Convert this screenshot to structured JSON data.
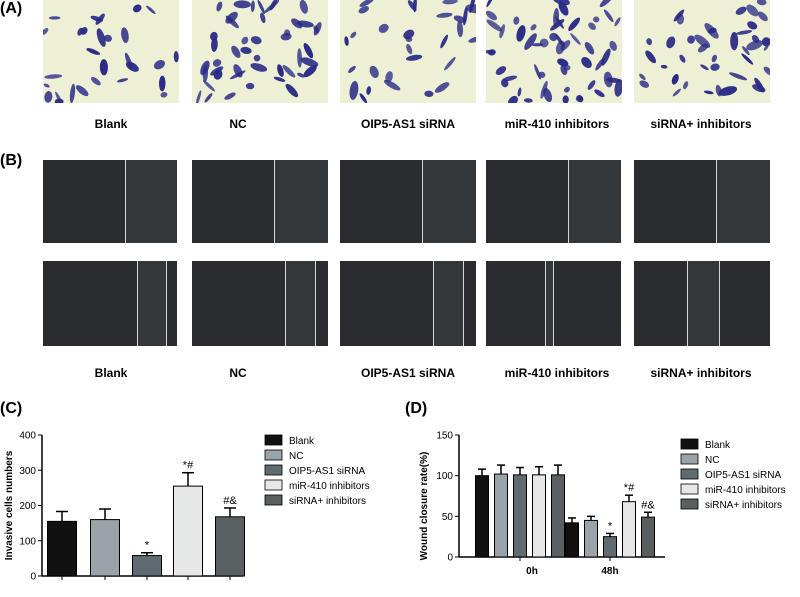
{
  "panels": {
    "A": {
      "label": "(A)",
      "captions": [
        "Blank",
        "NC",
        "OIP5-AS1 siRNA",
        "miR-410 inhibitors",
        "siRNA+ inhibitors"
      ]
    },
    "B": {
      "label": "(B)",
      "captions": [
        "Blank",
        "NC",
        "OIP5-AS1 siRNA",
        "miR-410 inhibitors",
        "siRNA+ inhibitors"
      ]
    },
    "C": {
      "label": "(C)"
    },
    "D": {
      "label": "(D)"
    }
  },
  "colors": {
    "blank": "#111111",
    "nc": "#9aa3a8",
    "oip5": "#5f6b70",
    "mir410": "#e6e8e8",
    "sirna_inh": "#5a5f62",
    "stain": "#2a2a86",
    "background_micro": "#eef0d6"
  },
  "chart_data": [
    {
      "type": "bar",
      "panel": "C",
      "ylabel": "Invasive cells numbers",
      "ylim": [
        0,
        400
      ],
      "yticks": [
        0,
        100,
        200,
        300,
        400
      ],
      "categories": [
        "Blank",
        "NC",
        "OIP5-AS1 siRNA",
        "miR-410 inhibitors",
        "siRNA+ inhibitors"
      ],
      "values": [
        155,
        160,
        58,
        255,
        168
      ],
      "errors": [
        28,
        30,
        8,
        38,
        25
      ],
      "annotations": [
        "",
        "",
        "*",
        "*#",
        "#&"
      ],
      "legend": [
        "Blank",
        "NC",
        "OIP5-AS1 siRNA",
        "miR-410 inhibitors",
        "siRNA+ inhibitors"
      ],
      "legend_position": "right"
    },
    {
      "type": "bar",
      "panel": "D",
      "ylabel": "Wound closure rate(%)",
      "ylim": [
        0,
        150
      ],
      "yticks": [
        0,
        50,
        100,
        150
      ],
      "groups": [
        "0h",
        "48h"
      ],
      "series": [
        {
          "name": "Blank",
          "values": [
            100,
            42
          ],
          "errors": [
            8,
            6
          ]
        },
        {
          "name": "NC",
          "values": [
            102,
            45
          ],
          "errors": [
            11,
            5
          ]
        },
        {
          "name": "OIP5-AS1 siRNA",
          "values": [
            101,
            25
          ],
          "errors": [
            9,
            4
          ]
        },
        {
          "name": "miR-410 inhibitors",
          "values": [
            101,
            68
          ],
          "errors": [
            10,
            8
          ]
        },
        {
          "name": "siRNA+ inhibitors",
          "values": [
            101,
            49
          ],
          "errors": [
            12,
            6
          ]
        }
      ],
      "annotations_48h": [
        "",
        "",
        "*",
        "*#",
        "#&"
      ],
      "legend": [
        "Blank",
        "NC",
        "OIP5-AS1 siRNA",
        "miR-410 inhibitors",
        "siRNA+ inhibitors"
      ],
      "legend_position": "right"
    }
  ]
}
